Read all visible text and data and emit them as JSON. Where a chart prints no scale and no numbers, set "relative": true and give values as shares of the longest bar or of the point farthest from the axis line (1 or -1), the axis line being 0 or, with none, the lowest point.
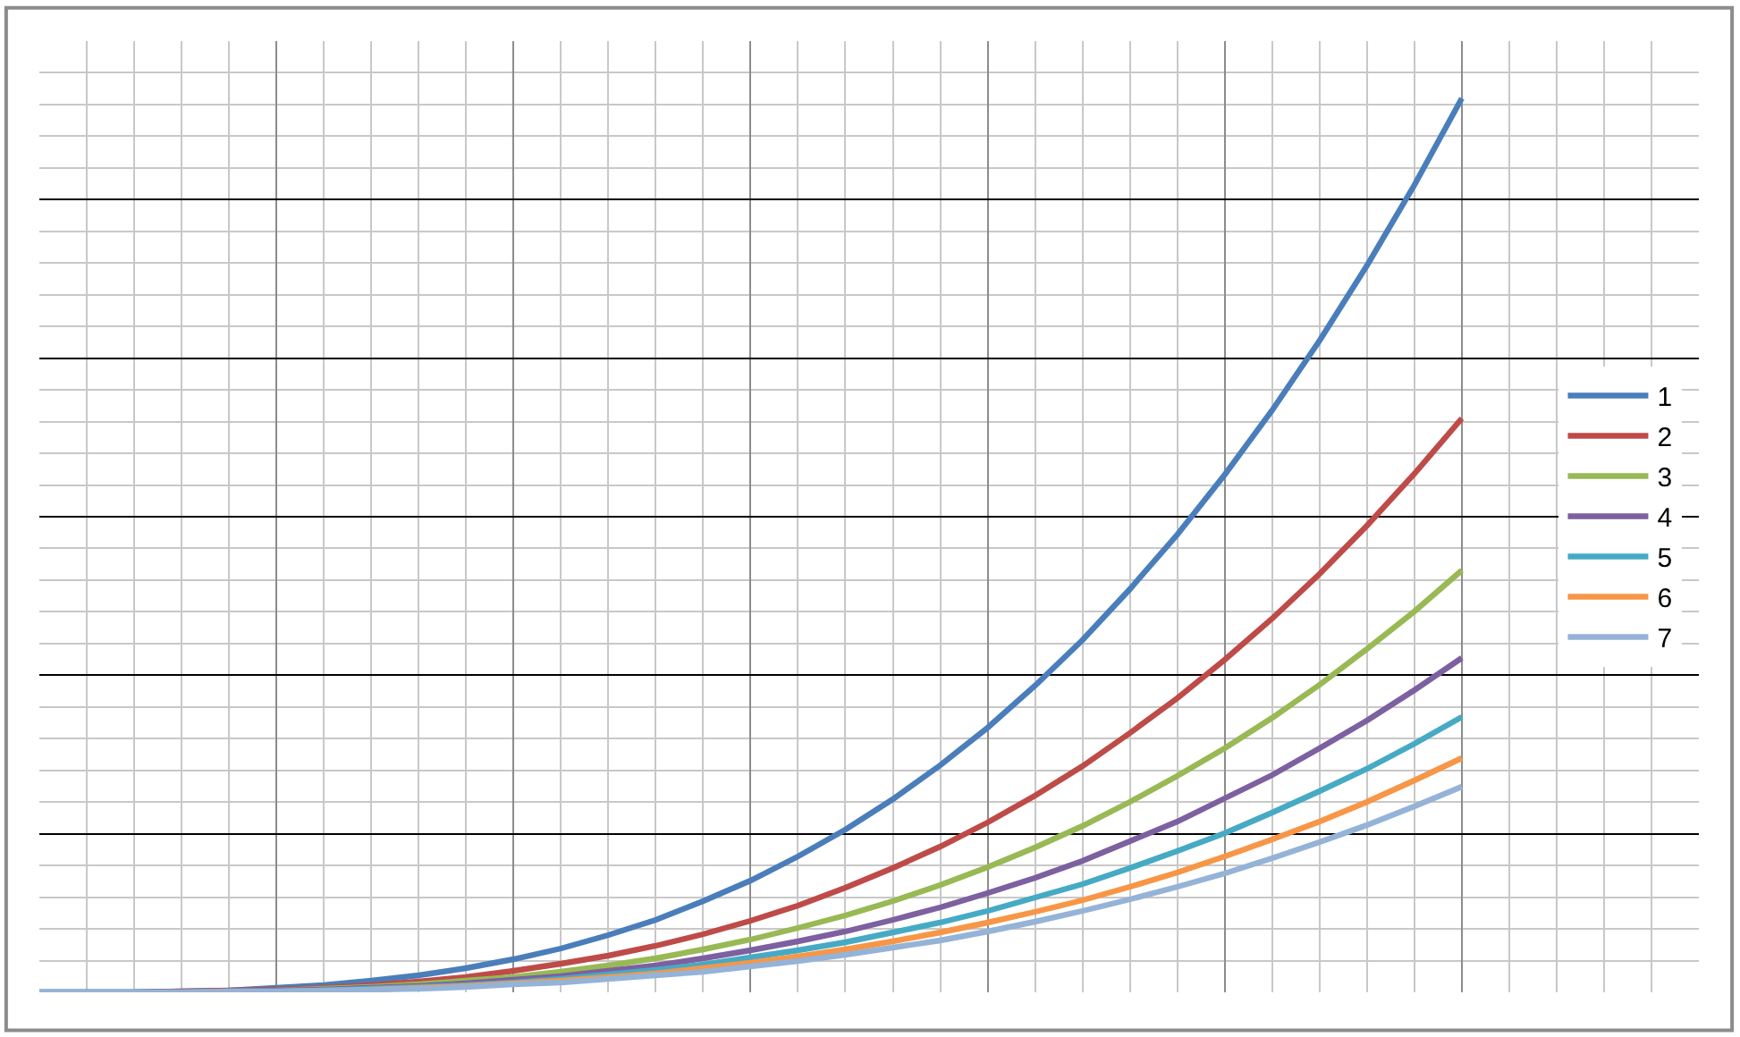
{
  "chart_data": {
    "type": "line",
    "relative": true,
    "grid": true,
    "legend": "right",
    "marker": "none",
    "line_style": "solid",
    "categories": [
      null,
      null,
      null,
      null,
      null,
      null,
      null,
      null,
      null,
      null,
      null,
      null,
      null,
      null,
      null,
      null,
      null,
      null,
      null,
      null,
      null,
      null,
      null,
      null,
      null,
      null,
      null,
      null,
      null,
      null,
      null
    ],
    "series": [
      {
        "name": "1",
        "color": "#4a7ebb",
        "values": [
          0,
          0,
          0,
          0.001,
          0.002,
          0.005,
          0.008,
          0.013,
          0.019,
          0.027,
          0.037,
          0.049,
          0.064,
          0.081,
          0.102,
          0.125,
          0.152,
          0.182,
          0.216,
          0.254,
          0.296,
          0.343,
          0.394,
          0.451,
          0.512,
          0.579,
          0.651,
          0.729,
          0.813,
          0.903,
          1
        ]
      },
      {
        "name": "2",
        "color": "#be4b48",
        "values": [
          null,
          null,
          0,
          0.001,
          0.002,
          0.003,
          0.005,
          0.008,
          0.012,
          0.017,
          0.024,
          0.032,
          0.041,
          0.052,
          0.065,
          0.08,
          0.097,
          0.117,
          0.139,
          0.163,
          0.19,
          0.22,
          0.253,
          0.29,
          0.329,
          0.372,
          0.418,
          0.468,
          0.522,
          0.58,
          0.642
        ]
      },
      {
        "name": "3",
        "color": "#98b954",
        "values": [
          null,
          null,
          null,
          null,
          null,
          0.002,
          0.004,
          0.006,
          0.009,
          0.013,
          0.017,
          0.023,
          0.03,
          0.038,
          0.048,
          0.059,
          0.072,
          0.086,
          0.102,
          0.12,
          0.14,
          0.162,
          0.186,
          0.213,
          0.242,
          0.273,
          0.307,
          0.344,
          0.384,
          0.426,
          0.472
        ]
      },
      {
        "name": "4",
        "color": "#7d60a0",
        "values": [
          0,
          0,
          0,
          0,
          0.001,
          0.002,
          0.003,
          0.005,
          0.007,
          0.01,
          0.014,
          0.018,
          0.024,
          0.03,
          0.038,
          0.047,
          0.057,
          0.068,
          0.081,
          0.095,
          0.111,
          0.128,
          0.147,
          0.169,
          0.191,
          0.217,
          0.243,
          0.273,
          0.304,
          0.338,
          0.374
        ]
      },
      {
        "name": "5",
        "color": "#46aac5",
        "values": [
          0,
          0,
          0,
          0,
          0.001,
          0.001,
          0.002,
          0.004,
          0.006,
          0.008,
          0.011,
          0.015,
          0.02,
          0.025,
          0.031,
          0.039,
          0.047,
          0.056,
          0.067,
          0.078,
          0.091,
          0.106,
          0.121,
          0.139,
          0.158,
          0.178,
          0.201,
          0.225,
          0.25,
          0.278,
          0.308
        ]
      },
      {
        "name": "6",
        "color": "#f79646",
        "values": [
          null,
          null,
          null,
          null,
          null,
          null,
          null,
          0.003,
          0.005,
          0.007,
          0.01,
          0.013,
          0.017,
          0.021,
          0.027,
          0.033,
          0.04,
          0.048,
          0.057,
          0.067,
          0.078,
          0.09,
          0.103,
          0.118,
          0.134,
          0.152,
          0.171,
          0.191,
          0.213,
          0.237,
          0.262
        ]
      },
      {
        "name": "7",
        "color": "#95b3d7",
        "values": [
          0,
          0,
          0,
          0,
          0.001,
          0.001,
          0.002,
          0.003,
          0.004,
          0.006,
          0.009,
          0.011,
          0.015,
          0.019,
          0.023,
          0.029,
          0.035,
          0.042,
          0.05,
          0.058,
          0.068,
          0.079,
          0.091,
          0.104,
          0.118,
          0.133,
          0.15,
          0.168,
          0.187,
          0.208,
          0.23
        ]
      }
    ]
  }
}
